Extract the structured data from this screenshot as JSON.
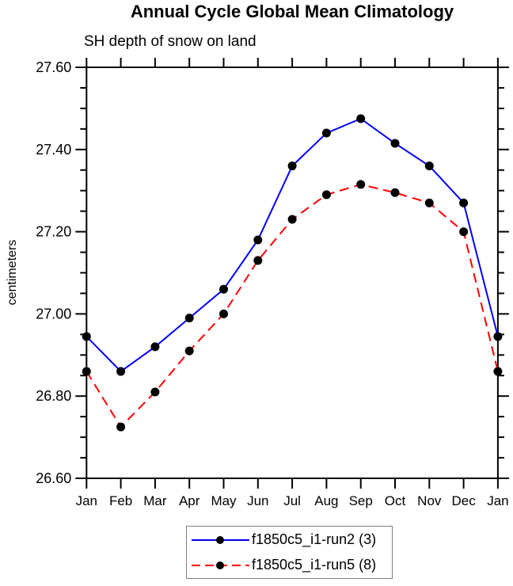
{
  "chart_data": {
    "type": "line",
    "title": "Annual Cycle Global Mean Climatology",
    "subtitle": "SH depth of snow on land",
    "ylabel": "centimeters",
    "xlabel": "",
    "x_categories": [
      "Jan",
      "Feb",
      "Mar",
      "Apr",
      "May",
      "Jun",
      "Jul",
      "Aug",
      "Sep",
      "Oct",
      "Nov",
      "Dec",
      "Jan"
    ],
    "ylim": [
      26.6,
      27.6
    ],
    "ytick_major_step": 0.2,
    "ytick_minor_step": 0.05,
    "ytick_labels": [
      "26.60",
      "26.80",
      "27.00",
      "27.20",
      "27.40",
      "27.60"
    ],
    "grid": false,
    "frame": "box-with-outward-ticks",
    "legend_position": "bottom-center",
    "axis_color": "#000000",
    "marker_color": "#000000",
    "series": [
      {
        "name": "f1850c5_i1-run2 (3)",
        "color": "#0000ff",
        "style": "solid",
        "marker": "filled-circle",
        "values": [
          26.945,
          26.86,
          26.92,
          26.99,
          27.06,
          27.18,
          27.36,
          27.44,
          27.475,
          27.415,
          27.36,
          27.27,
          26.945
        ]
      },
      {
        "name": "f1850c5_i1-run5 (8)",
        "color": "#ff0000",
        "style": "dashed",
        "marker": "filled-circle",
        "values": [
          26.86,
          26.725,
          26.81,
          26.91,
          27.0,
          27.13,
          27.23,
          27.29,
          27.315,
          27.295,
          27.27,
          27.2,
          26.86
        ]
      }
    ]
  }
}
